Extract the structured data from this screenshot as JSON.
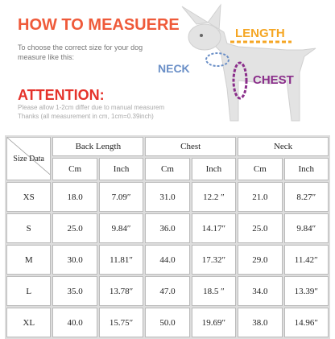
{
  "header": {
    "title": "HOW TO MEASUERE",
    "subtitle_lines": [
      "To choose the correct size for your dog",
      "measure like this:"
    ]
  },
  "diagram": {
    "length": "LENGTH",
    "neck": "NECK",
    "chest": "CHEST"
  },
  "attention": {
    "title": "ATTENTION:",
    "lines": [
      "Please allow 1-2cm differ due to manual measurem",
      "Thanks (all measurement in cm, 1cm=0.39inch)"
    ]
  },
  "table": {
    "corner": "Size Data",
    "groups": [
      "Back Length",
      "Chest",
      "Neck"
    ],
    "units": [
      "Cm",
      "Inch",
      "Cm",
      "Inch",
      "Cm",
      "Inch"
    ],
    "rows": [
      [
        "XS",
        "18.0",
        "7.09″",
        "31.0",
        "12.2 ″",
        "21.0",
        "8.27″"
      ],
      [
        "S",
        "25.0",
        "9.84″",
        "36.0",
        "14.17″",
        "25.0",
        "9.84″"
      ],
      [
        "M",
        "30.0",
        "11.81″",
        "44.0",
        "17.32″",
        "29.0",
        "11.42″"
      ],
      [
        "L",
        "35.0",
        "13.78″",
        "47.0",
        "18.5 ″",
        "34.0",
        "13.39″"
      ],
      [
        "XL",
        "40.0",
        "15.75″",
        "50.0",
        "19.69″",
        "38.0",
        "14.96″"
      ]
    ]
  }
}
